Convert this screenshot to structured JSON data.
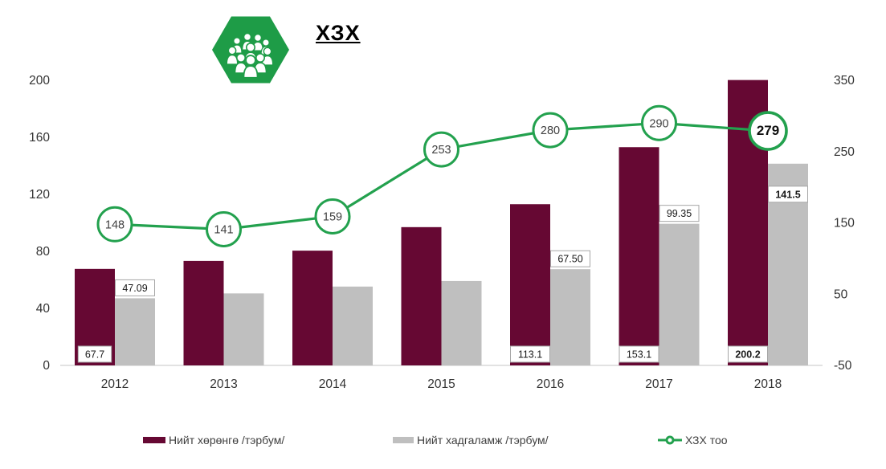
{
  "header": {
    "title": "ХЗХ",
    "icon": "people-group-icon"
  },
  "colors": {
    "assets_bar": "#660833",
    "deposits_bar": "#BFBFBF",
    "line": "#23A14E",
    "hexagon": "#1E9C47",
    "axis_line": "#D9D9D9",
    "axis_text": "#333333",
    "label_box_border": "#A6A6A6",
    "label_text": "#1a1a1a"
  },
  "chart_data": {
    "type": "bar+line combo",
    "categories": [
      "2012",
      "2013",
      "2014",
      "2015",
      "2016",
      "2017",
      "2018"
    ],
    "series": [
      {
        "name": "Нийт хөрөнгө /тэрбум/",
        "type": "bar",
        "axis": "left",
        "color": "#660833",
        "values": [
          67.7,
          73.3,
          80.5,
          97.0,
          113.1,
          153.1,
          200.2
        ],
        "point_labels": [
          "67.7",
          null,
          null,
          null,
          "113.1",
          "153.1",
          "200.2"
        ]
      },
      {
        "name": "Нийт хадгаламж /тэрбум/",
        "type": "bar",
        "axis": "left",
        "color": "#BFBFBF",
        "values": [
          47.09,
          50.5,
          55.3,
          59.2,
          67.5,
          99.35,
          141.5
        ],
        "point_labels": [
          "47.09",
          null,
          null,
          null,
          "67.50",
          "99.35",
          "141.5"
        ]
      },
      {
        "name": "ХЗХ тоо",
        "type": "line",
        "axis": "right",
        "color": "#23A14E",
        "values": [
          148,
          141,
          159,
          253,
          280,
          290,
          279
        ],
        "point_labels": [
          "148",
          "141",
          "159",
          "253",
          "280",
          "290",
          "279"
        ]
      }
    ],
    "left_axis": {
      "range": [
        0,
        200
      ],
      "ticks": [
        0,
        40,
        80,
        120,
        160,
        200
      ]
    },
    "right_axis": {
      "range": [
        -50,
        350
      ],
      "ticks": [
        -50,
        50,
        150,
        250,
        350
      ]
    },
    "emphasized_category_index": 6,
    "grid": false,
    "legend_position": "bottom"
  },
  "legend": {
    "items": [
      {
        "label": "Нийт хөрөнгө /тэрбум/",
        "marker": "assets-swatch"
      },
      {
        "label": "Нийт хадгаламж /тэрбум/",
        "marker": "deposits-swatch"
      },
      {
        "label": "ХЗХ тоо",
        "marker": "line-dot-marker"
      }
    ]
  }
}
